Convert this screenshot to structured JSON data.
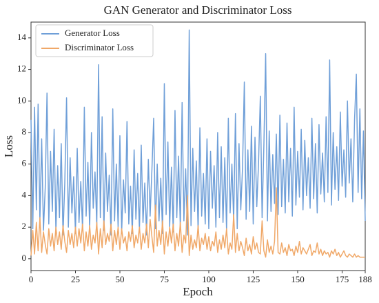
{
  "chart_data": {
    "type": "line",
    "title": "GAN Generator and Discriminator Loss",
    "xlabel": "Epoch",
    "ylabel": "Loss",
    "x": [
      0,
      1,
      2,
      3,
      4,
      5,
      6,
      7,
      8,
      9,
      10,
      11,
      12,
      13,
      14,
      15,
      16,
      17,
      18,
      19,
      20,
      21,
      22,
      23,
      24,
      25,
      26,
      27,
      28,
      29,
      30,
      31,
      32,
      33,
      34,
      35,
      36,
      37,
      38,
      39,
      40,
      41,
      42,
      43,
      44,
      45,
      46,
      47,
      48,
      49,
      50,
      51,
      52,
      53,
      54,
      55,
      56,
      57,
      58,
      59,
      60,
      61,
      62,
      63,
      64,
      65,
      66,
      67,
      68,
      69,
      70,
      71,
      72,
      73,
      74,
      75,
      76,
      77,
      78,
      79,
      80,
      81,
      82,
      83,
      84,
      85,
      86,
      87,
      88,
      89,
      90,
      91,
      92,
      93,
      94,
      95,
      96,
      97,
      98,
      99,
      100,
      101,
      102,
      103,
      104,
      105,
      106,
      107,
      108,
      109,
      110,
      111,
      112,
      113,
      114,
      115,
      116,
      117,
      118,
      119,
      120,
      121,
      122,
      123,
      124,
      125,
      126,
      127,
      128,
      129,
      130,
      131,
      132,
      133,
      134,
      135,
      136,
      137,
      138,
      139,
      140,
      141,
      142,
      143,
      144,
      145,
      146,
      147,
      148,
      149,
      150,
      151,
      152,
      153,
      154,
      155,
      156,
      157,
      158,
      159,
      160,
      161,
      162,
      163,
      164,
      165,
      166,
      167,
      168,
      169,
      170,
      171,
      172,
      173,
      174,
      175,
      176,
      177,
      178,
      179,
      180,
      181,
      182,
      183,
      184,
      185,
      186,
      187,
      188
    ],
    "series": [
      {
        "name": "Generator Loss",
        "color": "#6f9fd8",
        "values": [
          8.8,
          1.9,
          9.6,
          3.1,
          9.8,
          2.4,
          7.6,
          1.8,
          4.5,
          10.5,
          2.2,
          6.8,
          3.0,
          8.2,
          1.7,
          5.9,
          2.6,
          7.3,
          1.5,
          4.8,
          10.2,
          2.0,
          6.4,
          2.9,
          5.2,
          1.6,
          7.0,
          2.3,
          4.9,
          1.8,
          9.6,
          2.7,
          6.1,
          1.9,
          8.0,
          3.2,
          5.5,
          2.1,
          12.3,
          2.6,
          9.0,
          1.8,
          6.7,
          3.0,
          5.3,
          1.5,
          9.5,
          2.4,
          6.0,
          2.0,
          7.8,
          1.7,
          5.0,
          2.9,
          8.7,
          2.2,
          4.6,
          1.6,
          6.9,
          2.5,
          5.4,
          1.8,
          7.2,
          2.3,
          4.8,
          1.5,
          6.3,
          2.7,
          5.6,
          8.9,
          1.9,
          6.0,
          2.4,
          5.1,
          1.6,
          11.1,
          2.8,
          7.4,
          2.0,
          5.8,
          1.7,
          9.4,
          2.6,
          6.5,
          1.9,
          9.9,
          2.4,
          5.7,
          1.5,
          14.5,
          2.1,
          7.0,
          3.0,
          6.2,
          1.8,
          8.3,
          2.7,
          5.4,
          2.2,
          7.6,
          1.9,
          6.8,
          3.2,
          5.9,
          2.0,
          8.0,
          2.6,
          7.1,
          2.3,
          6.4,
          1.8,
          8.9,
          2.9,
          6.0,
          2.4,
          9.2,
          1.9,
          7.3,
          3.1,
          5.8,
          11.2,
          2.5,
          6.9,
          3.0,
          8.4,
          2.2,
          7.7,
          3.3,
          6.1,
          10.3,
          2.6,
          7.2,
          13.0,
          2.4,
          8.1,
          3.0,
          6.6,
          3.5,
          7.9,
          2.8,
          9.1,
          3.3,
          6.3,
          2.9,
          8.6,
          3.6,
          7.0,
          2.7,
          9.6,
          3.4,
          6.8,
          3.9,
          8.2,
          3.1,
          7.5,
          4.0,
          6.4,
          3.2,
          8.9,
          3.8,
          7.3,
          2.9,
          8.5,
          4.1,
          6.7,
          3.6,
          9.0,
          4.2,
          12.6,
          3.4,
          8.0,
          4.4,
          7.1,
          3.7,
          9.3,
          4.6,
          6.9,
          3.9,
          10.0,
          4.8,
          7.6,
          3.6,
          8.8,
          11.7,
          4.2,
          9.5,
          3.8,
          8.1,
          2.4
        ]
      },
      {
        "name": "Discriminator Loss",
        "color": "#f0a868",
        "values": [
          0.2,
          1.8,
          0.3,
          2.3,
          0.5,
          2.6,
          0.4,
          1.7,
          0.9,
          0.3,
          1.9,
          0.8,
          1.6,
          0.5,
          2.0,
          0.9,
          1.7,
          0.6,
          2.1,
          1.1,
          0.4,
          1.8,
          0.9,
          1.6,
          0.7,
          2.0,
          0.8,
          1.9,
          1.0,
          2.2,
          0.5,
          1.7,
          0.8,
          2.1,
          0.6,
          1.5,
          1.0,
          2.3,
          0.3,
          1.9,
          0.7,
          2.4,
          0.9,
          1.6,
          1.1,
          2.2,
          0.5,
          1.8,
          0.9,
          2.0,
          0.6,
          1.9,
          1.0,
          1.4,
          0.5,
          1.7,
          1.1,
          2.1,
          0.7,
          1.5,
          1.0,
          2.0,
          0.6,
          1.6,
          1.0,
          2.2,
          0.7,
          2.5,
          1.4,
          0.4,
          3.4,
          0.8,
          1.8,
          0.9,
          2.4,
          0.3,
          1.7,
          0.8,
          2.0,
          1.0,
          2.2,
          0.5,
          1.6,
          0.8,
          2.3,
          0.4,
          1.5,
          1.0,
          4.0,
          0.2,
          1.5,
          0.6,
          1.2,
          0.7,
          2.1,
          0.5,
          1.3,
          0.9,
          1.6,
          0.6,
          1.4,
          0.5,
          1.1,
          0.8,
          1.7,
          0.4,
          1.2,
          0.6,
          1.5,
          0.7,
          1.9,
          0.3,
          1.0,
          0.6,
          2.8,
          0.4,
          1.6,
          0.5,
          1.1,
          0.7,
          0.2,
          1.3,
          0.5,
          0.9,
          0.3,
          1.4,
          0.6,
          1.0,
          0.4,
          0.3,
          2.4,
          0.5,
          0.1,
          1.2,
          0.4,
          0.8,
          0.3,
          1.1,
          4.5,
          0.4,
          0.3,
          1.0,
          0.4,
          0.7,
          0.2,
          0.9,
          0.5,
          0.6,
          0.2,
          0.8,
          0.4,
          1.1,
          0.3,
          0.7,
          0.5,
          0.3,
          0.6,
          0.9,
          0.2,
          0.5,
          0.4,
          1.0,
          0.3,
          0.6,
          0.2,
          0.5,
          0.3,
          0.4,
          0.1,
          0.5,
          0.3,
          0.6,
          0.2,
          0.4,
          0.1,
          0.3,
          0.5,
          0.2,
          0.1,
          0.3,
          0.2,
          0.1,
          0.3,
          0.1,
          0.2,
          0.1,
          0.1,
          0.1,
          0.1
        ]
      }
    ],
    "xlim": [
      0,
      188
    ],
    "xticks": [
      0,
      25,
      50,
      75,
      100,
      125,
      150,
      175,
      188
    ],
    "ylim": [
      -0.75,
      15
    ],
    "yticks": [
      0,
      2,
      4,
      6,
      8,
      10,
      12,
      14
    ],
    "legend": "upper left"
  }
}
